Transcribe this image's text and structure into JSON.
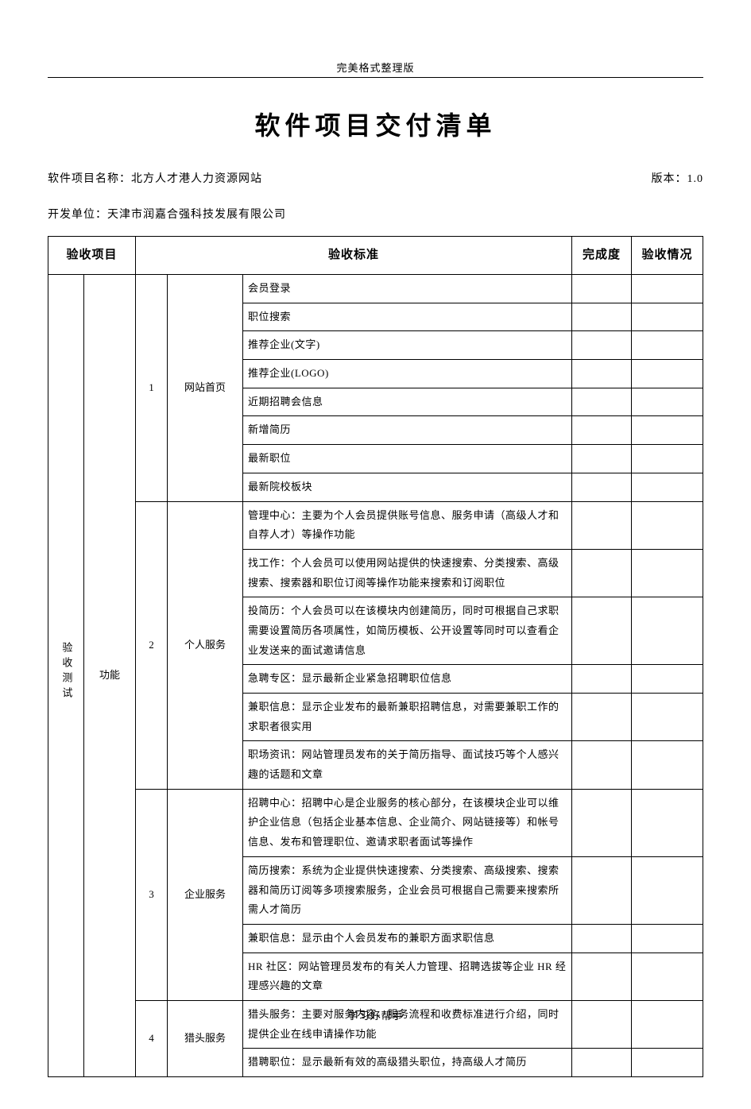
{
  "header_label": "完美格式整理版",
  "title": "软件项目交付清单",
  "project_name_label": "软件项目名称：",
  "project_name_value": "北方人才港人力资源网站",
  "version_label": "版本：",
  "version_value": "1.0",
  "dev_unit_label": "开发单位：",
  "dev_unit_value": "天津市润嘉合强科技发展有限公司",
  "columns": {
    "project": "验收项目",
    "standard": "验收标准",
    "completion": "完成度",
    "status": "验收情况"
  },
  "main_category_vertical": "验收测试",
  "sub_category": "功能",
  "sections": {
    "s1": {
      "num": "1",
      "name": "网站首页",
      "items": {
        "0": "会员登录",
        "1": "职位搜索",
        "2": "推荐企业(文字)",
        "3": "推荐企业(LOGO)",
        "4": "近期招聘会信息",
        "5": "新增简历",
        "6": "最新职位",
        "7": "最新院校板块"
      }
    },
    "s2": {
      "num": "2",
      "name": "个人服务",
      "items": {
        "0": "管理中心：主要为个人会员提供账号信息、服务申请（高级人才和自荐人才）等操作功能",
        "1": "找工作：个人会员可以使用网站提供的快速搜索、分类搜索、高级搜索、搜索器和职位订阅等操作功能来搜索和订阅职位",
        "2": "投简历：个人会员可以在该模块内创建简历，同时可根据自己求职需要设置简历各项属性，如简历模板、公开设置等同时可以查看企业发送来的面试邀请信息",
        "3": "急聘专区：显示最新企业紧急招聘职位信息",
        "4": "兼职信息：显示企业发布的最新兼职招聘信息，对需要兼职工作的求职者很实用",
        "5": "职场资讯：网站管理员发布的关于简历指导、面试技巧等个人感兴趣的话题和文章"
      }
    },
    "s3": {
      "num": "3",
      "name": "企业服务",
      "items": {
        "0": "招聘中心：招聘中心是企业服务的核心部分，在该模块企业可以维护企业信息（包括企业基本信息、企业简介、网站链接等）和帐号信息、发布和管理职位、邀请求职者面试等操作",
        "1": "简历搜索：系统为企业提供快速搜索、分类搜索、高级搜索、搜索器和简历订阅等多项搜索服务，企业会员可根据自己需要来搜索所需人才简历",
        "2": "兼职信息：显示由个人会员发布的兼职方面求职信息",
        "3": "HR 社区：网站管理员发布的有关人力管理、招聘选拔等企业 HR 经理感兴趣的文章"
      }
    },
    "s4": {
      "num": "4",
      "name": "猎头服务",
      "items": {
        "0": "猎头服务：主要对服务内容、服务流程和收费标准进行介绍，同时提供企业在线申请操作功能",
        "1": "猎聘职位：显示最新有效的高级猎头职位，持高级人才简历"
      }
    }
  },
  "footer_label": "学习好帮手"
}
